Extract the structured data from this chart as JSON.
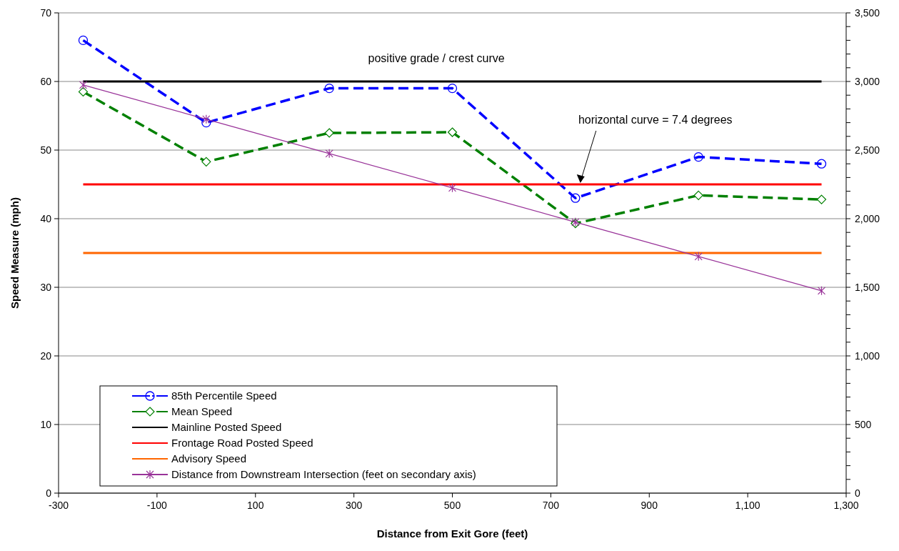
{
  "chart_data": {
    "type": "line",
    "xlabel": "Distance from Exit Gore (feet)",
    "ylabel": "Speed Measure (mph)",
    "x": [
      -250,
      0,
      250,
      500,
      750,
      1000,
      1250
    ],
    "xlim": [
      -300,
      1300
    ],
    "xticks": [
      {
        "value": -300,
        "label": "-300"
      },
      {
        "value": -100,
        "label": "-100"
      },
      100,
      300,
      500,
      700,
      900,
      {
        "value": 1100,
        "label": "1,100"
      },
      {
        "value": 1300,
        "label": "1,300"
      }
    ],
    "ylim": [
      0,
      70
    ],
    "yticks": [
      0,
      10,
      20,
      30,
      40,
      50,
      60,
      70
    ],
    "y2lim": [
      0,
      3500
    ],
    "y2ticks": [
      0,
      {
        "value": 100,
        "label": null
      },
      {
        "value": 200,
        "label": null
      },
      {
        "value": 300,
        "label": null
      },
      {
        "value": 400,
        "label": null
      },
      500,
      {
        "value": 600,
        "label": null
      },
      {
        "value": 700,
        "label": null
      },
      {
        "value": 800,
        "label": null
      },
      {
        "value": 900,
        "label": null
      },
      {
        "value": 1000,
        "label": "1,000"
      },
      {
        "value": 1100,
        "label": null
      },
      {
        "value": 1200,
        "label": null
      },
      {
        "value": 1300,
        "label": null
      },
      {
        "value": 1400,
        "label": null
      },
      {
        "value": 1500,
        "label": "1,500"
      },
      {
        "value": 1600,
        "label": null
      },
      {
        "value": 1700,
        "label": null
      },
      {
        "value": 1800,
        "label": null
      },
      {
        "value": 1900,
        "label": null
      },
      {
        "value": 2000,
        "label": "2,000"
      },
      {
        "value": 2100,
        "label": null
      },
      {
        "value": 2200,
        "label": null
      },
      {
        "value": 2300,
        "label": null
      },
      {
        "value": 2400,
        "label": null
      },
      {
        "value": 2500,
        "label": "2,500"
      },
      {
        "value": 2600,
        "label": null
      },
      {
        "value": 2700,
        "label": null
      },
      {
        "value": 2800,
        "label": null
      },
      {
        "value": 2900,
        "label": null
      },
      {
        "value": 3000,
        "label": "3,000"
      },
      {
        "value": 3100,
        "label": null
      },
      {
        "value": 3200,
        "label": null
      },
      {
        "value": 3300,
        "label": null
      },
      {
        "value": 3400,
        "label": null
      },
      {
        "value": 3500,
        "label": "3,500"
      }
    ],
    "grid": "y",
    "legend": "bottom left",
    "series": [
      {
        "name": "85th Percentile Speed",
        "color": "#0000ff",
        "marker": "circle",
        "line_style": "dashed",
        "values": [
          66,
          54,
          59,
          59,
          43,
          49,
          48
        ]
      },
      {
        "name": "Mean Speed",
        "color": "#008000",
        "marker": "diamond",
        "line_style": "dashed",
        "values": [
          58.5,
          48.3,
          52.5,
          52.6,
          39.3,
          43.4,
          42.8
        ]
      },
      {
        "name": "Mainline Posted Speed",
        "color": "#000000",
        "marker": "none",
        "line_style": "solid",
        "values": [
          60,
          60,
          60,
          60,
          60,
          60,
          60
        ]
      },
      {
        "name": "Frontage Road Posted Speed",
        "color": "#ff0000",
        "marker": "none",
        "line_style": "solid",
        "values": [
          45,
          45,
          45,
          45,
          45,
          45,
          45
        ]
      },
      {
        "name": "Advisory Speed",
        "color": "#ff6600",
        "marker": "none",
        "line_style": "solid",
        "values": [
          35,
          35,
          35,
          35,
          35,
          35,
          35
        ]
      },
      {
        "name": "Distance from Downstream Intersection (feet on secondary axis)",
        "color": "#993399",
        "marker": "cross",
        "line_style": "solid",
        "axis": "y2",
        "values": [
          2975,
          2725,
          2475,
          2225,
          1975,
          1725,
          1475
        ]
      }
    ],
    "annotations": [
      "positive grade / crest curve",
      "horizontal curve = 7.4 degrees"
    ]
  }
}
